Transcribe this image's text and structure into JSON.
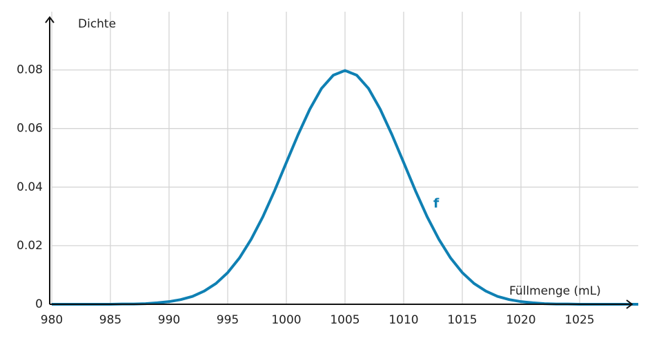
{
  "chart_data": {
    "type": "line",
    "y_label": "Dichte",
    "x_label": "Füllmenge (mL)",
    "x": [
      980,
      981,
      982,
      983,
      984,
      985,
      986,
      987,
      988,
      989,
      990,
      991,
      992,
      993,
      994,
      995,
      996,
      997,
      998,
      999,
      1000,
      1001,
      1002,
      1003,
      1004,
      1005,
      1006,
      1007,
      1008,
      1009,
      1010,
      1011,
      1012,
      1013,
      1014,
      1015,
      1016,
      1017,
      1018,
      1019,
      1020,
      1021,
      1022,
      1023,
      1024,
      1025,
      1026,
      1027,
      1028,
      1029,
      1030
    ],
    "series": [
      {
        "name": "f",
        "color": "#0f80b3",
        "values": [
          0,
          0,
          0,
          0,
          0,
          0,
          0.0001,
          0.0001,
          0.0002,
          0.0005,
          0.0009,
          0.0016,
          0.0027,
          0.0045,
          0.0071,
          0.0108,
          0.0158,
          0.0222,
          0.0299,
          0.0388,
          0.0484,
          0.0579,
          0.0666,
          0.0737,
          0.0782,
          0.0798,
          0.0782,
          0.0737,
          0.0666,
          0.0579,
          0.0484,
          0.0388,
          0.0299,
          0.0222,
          0.0158,
          0.0108,
          0.0071,
          0.0045,
          0.0027,
          0.0016,
          0.0009,
          0.0005,
          0.0002,
          0.0001,
          0.0001,
          0,
          0,
          0,
          0,
          0,
          0
        ]
      }
    ],
    "xlim": [
      980,
      1030
    ],
    "ylim": [
      0,
      0.098
    ],
    "xticks": [
      980,
      985,
      990,
      995,
      1000,
      1005,
      1010,
      1015,
      1020,
      1025
    ],
    "yticks": [
      0,
      0.02,
      0.04,
      0.06,
      0.08
    ],
    "grid": true
  }
}
